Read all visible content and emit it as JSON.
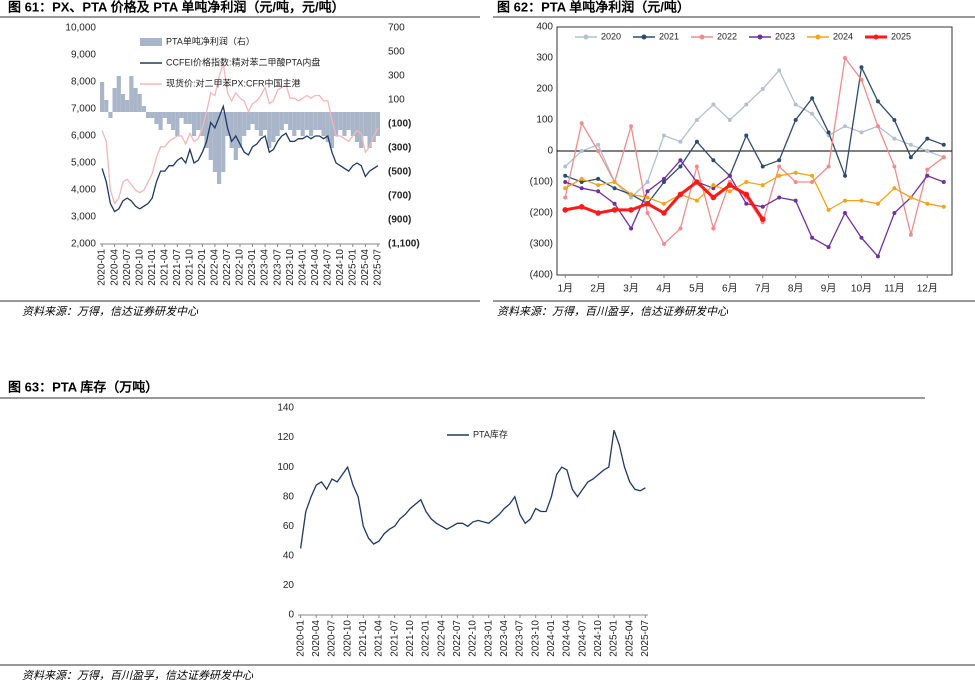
{
  "chart_data": [
    {
      "type": "combo",
      "title": "图 61：PX、PTA 价格及 PTA 单吨净利润（元/吨，元/吨）",
      "source": "资料来源：万得，信达证券研发中心",
      "categories": [
        "2020-01",
        null,
        null,
        "2020-04",
        null,
        null,
        "2020-07",
        null,
        null,
        "2020-10",
        null,
        null,
        "2021-01",
        null,
        null,
        "2021-04",
        null,
        null,
        "2021-07",
        null,
        null,
        "2021-10",
        null,
        null,
        "2022-01",
        null,
        null,
        "2022-04",
        null,
        null,
        "2022-07",
        null,
        null,
        "2022-10",
        null,
        null,
        "2023-01",
        null,
        null,
        "2023-04",
        null,
        null,
        "2023-07",
        null,
        null,
        "2023-10",
        null,
        null,
        "2024-01",
        null,
        null,
        "2024-04",
        null,
        null,
        "2024-07",
        null,
        null,
        "2024-10",
        null,
        null,
        "2025-01",
        null,
        null,
        "2025-04",
        null,
        null,
        "2025-07"
      ],
      "series": [
        {
          "name": "PTA单吨净利润（右）",
          "kind": "bar",
          "axis": "y2",
          "color": "#a9b6c9",
          "values": [
            250,
            100,
            -50,
            200,
            300,
            150,
            100,
            300,
            200,
            150,
            50,
            -50,
            -50,
            -100,
            -150,
            -50,
            -100,
            -150,
            -200,
            -50,
            -100,
            -100,
            -200,
            -150,
            -200,
            -300,
            -400,
            -500,
            -600,
            -500,
            -200,
            -300,
            -400,
            -300,
            -200,
            -150,
            -100,
            -150,
            -200,
            -150,
            -300,
            -250,
            -200,
            -150,
            -100,
            -150,
            -200,
            -150,
            -200,
            -150,
            -200,
            -150,
            -150,
            -200,
            -250,
            -300,
            -200,
            -150,
            -200,
            -150,
            -200,
            -250,
            -300,
            -200,
            -300,
            -250,
            -200
          ]
        },
        {
          "name": "CCFEI价格指数:精对苯二甲酸PTA内盘",
          "kind": "line",
          "color": "#1f3864",
          "values": [
            4800,
            4300,
            3500,
            3200,
            3300,
            3600,
            3700,
            3600,
            3400,
            3300,
            3400,
            3500,
            3700,
            4300,
            4700,
            4700,
            4900,
            4900,
            5100,
            5200,
            5000,
            5500,
            5000,
            5100,
            5400,
            5800,
            6500,
            6300,
            6700,
            7100,
            6300,
            5800,
            6000,
            5700,
            5400,
            5300,
            5600,
            5700,
            5900,
            6000,
            5400,
            5500,
            5800,
            6000,
            6100,
            5800,
            5800,
            5900,
            5900,
            6000,
            5900,
            6000,
            6000,
            5900,
            6000,
            5400,
            5000,
            4900,
            4800,
            4700,
            4900,
            5000,
            4900,
            4500,
            4700,
            4800,
            4900
          ]
        },
        {
          "name": "现货价:对二甲苯PX:CFR中国主港",
          "kind": "line",
          "color": "#f4b6b6",
          "values": [
            6200,
            5800,
            4000,
            3500,
            3700,
            4300,
            4400,
            4200,
            4000,
            3900,
            4000,
            4300,
            4600,
            5200,
            5600,
            5600,
            5800,
            5900,
            6000,
            6000,
            5700,
            6100,
            5800,
            5900,
            6300,
            6900,
            7600,
            7500,
            8200,
            8700,
            7600,
            7300,
            7600,
            7400,
            7300,
            6900,
            7200,
            7300,
            7500,
            7800,
            7200,
            7300,
            7700,
            7800,
            7900,
            7400,
            7400,
            7300,
            7400,
            7500,
            7400,
            7500,
            7500,
            7300,
            7300,
            6600,
            6000,
            6000,
            5900,
            5800,
            6000,
            6200,
            6100,
            5400,
            5600,
            6000,
            6300
          ]
        }
      ],
      "ylim": [
        2000,
        10000
      ],
      "yticks": [
        {
          "value": 2000,
          "label": "2,000"
        },
        {
          "value": 3000,
          "label": "3,000"
        },
        {
          "value": 4000,
          "label": "4,000"
        },
        {
          "value": 5000,
          "label": "5,000"
        },
        {
          "value": 6000,
          "label": "6,000"
        },
        {
          "value": 7000,
          "label": "7,000"
        },
        {
          "value": 8000,
          "label": "8,000"
        },
        {
          "value": 9000,
          "label": "9,000"
        },
        {
          "value": 10000,
          "label": "10,000"
        }
      ],
      "y2lim": [
        -1100,
        700
      ],
      "y2ticks": [
        {
          "value": -1100,
          "label": "(1,100)"
        },
        {
          "value": -900,
          "label": "(900)"
        },
        {
          "value": -700,
          "label": "(700)"
        },
        {
          "value": -500,
          "label": "(500)"
        },
        {
          "value": -300,
          "label": "(300)"
        },
        {
          "value": -100,
          "label": "(100)"
        },
        100,
        300,
        500,
        700
      ],
      "grid": false
    },
    {
      "type": "line",
      "title": "图 62：PTA 单吨净利润（元/吨）",
      "source": "资料来源：万得，百川盈孚，信达证券研发中心",
      "categories": [
        "1月",
        null,
        "2月",
        null,
        "3月",
        null,
        "4月",
        null,
        "5月",
        null,
        "6月",
        null,
        "7月",
        null,
        "8月",
        null,
        "9月",
        null,
        "10月",
        null,
        "11月",
        null,
        "12月",
        null
      ],
      "series": [
        {
          "name": "2020",
          "color": "#b4c0cf",
          "values": [
            -50,
            0,
            20,
            -100,
            -150,
            -100,
            50,
            30,
            100,
            150,
            100,
            150,
            200,
            260,
            150,
            120,
            50,
            80,
            60,
            80,
            40,
            20,
            0,
            -20
          ]
        },
        {
          "name": "2021",
          "color": "#2e4a6e",
          "values": [
            -80,
            -100,
            -90,
            -120,
            -140,
            -170,
            -100,
            -50,
            30,
            -30,
            -80,
            50,
            -50,
            -30,
            100,
            170,
            60,
            -80,
            270,
            160,
            100,
            -20,
            40,
            20
          ]
        },
        {
          "name": "2022",
          "color": "#f08c8c",
          "values": [
            -150,
            90,
            0,
            -100,
            80,
            -200,
            -300,
            -250,
            -50,
            -250,
            -100,
            -150,
            -230,
            -50,
            -100,
            -100,
            -50,
            300,
            230,
            80,
            -50,
            -270,
            -60,
            -20
          ]
        },
        {
          "name": "2023",
          "color": "#7030a0",
          "values": [
            -100,
            -120,
            -130,
            -170,
            -250,
            -130,
            -90,
            -30,
            -100,
            -120,
            -80,
            -170,
            -180,
            -150,
            -160,
            -280,
            -310,
            -200,
            -280,
            -340,
            -200,
            -150,
            -80,
            -100
          ]
        },
        {
          "name": "2024",
          "color": "#f5a31a",
          "values": [
            -120,
            -90,
            -110,
            -100,
            -140,
            -150,
            -170,
            -140,
            -160,
            -110,
            -130,
            -100,
            -110,
            -80,
            -70,
            -80,
            -190,
            -160,
            -160,
            -170,
            -120,
            -150,
            -170,
            -180
          ]
        },
        {
          "name": "2025",
          "color": "#ff1a1a",
          "bold": true,
          "values": [
            -190,
            -180,
            -200,
            -190,
            -190,
            -170,
            -200,
            -140,
            -100,
            -150,
            -110,
            -140,
            -220,
            null,
            null,
            null,
            null,
            null,
            null,
            null,
            null,
            null,
            null,
            null
          ]
        }
      ],
      "ylim": [
        -400,
        400
      ],
      "yticks": [
        {
          "value": -400,
          "label": "(400)"
        },
        {
          "value": -300,
          "label": "(300)"
        },
        {
          "value": -200,
          "label": "(200)"
        },
        {
          "value": -100,
          "label": "(100)"
        },
        0,
        100,
        200,
        300,
        400
      ],
      "zero_line": true,
      "markers": true,
      "legend": "top"
    },
    {
      "type": "line",
      "title": "图 63：PTA 库存（万吨）",
      "source": "资料来源：万得，百川盈孚，信达证券研发中心",
      "categories": [
        "2020-01",
        null,
        null,
        "2020-04",
        null,
        null,
        "2020-07",
        null,
        null,
        "2020-10",
        null,
        null,
        "2021-01",
        null,
        null,
        "2021-04",
        null,
        null,
        "2021-07",
        null,
        null,
        "2021-10",
        null,
        null,
        "2022-01",
        null,
        null,
        "2022-04",
        null,
        null,
        "2022-07",
        null,
        null,
        "2022-10",
        null,
        null,
        "2023-01",
        null,
        null,
        "2023-04",
        null,
        null,
        "2023-07",
        null,
        null,
        "2023-10",
        null,
        null,
        "2024-01",
        null,
        null,
        "2024-04",
        null,
        null,
        "2024-07",
        null,
        null,
        "2024-10",
        null,
        null,
        "2025-01",
        null,
        null,
        "2025-04",
        null,
        null,
        "2025-07"
      ],
      "series": [
        {
          "name": "PTA库存",
          "color": "#1f3864",
          "values": [
            45,
            70,
            80,
            88,
            90,
            85,
            92,
            90,
            95,
            100,
            88,
            80,
            60,
            52,
            48,
            50,
            55,
            58,
            60,
            65,
            68,
            72,
            75,
            78,
            70,
            65,
            62,
            60,
            58,
            60,
            62,
            62,
            60,
            63,
            64,
            63,
            62,
            65,
            68,
            72,
            75,
            80,
            68,
            62,
            65,
            72,
            70,
            70,
            80,
            95,
            100,
            98,
            85,
            80,
            85,
            90,
            92,
            95,
            98,
            100,
            125,
            115,
            100,
            90,
            85,
            84,
            86
          ]
        }
      ],
      "ylim": [
        0,
        140
      ],
      "yticks": [
        0,
        20,
        40,
        60,
        80,
        100,
        120,
        140
      ],
      "legend": "top"
    }
  ]
}
